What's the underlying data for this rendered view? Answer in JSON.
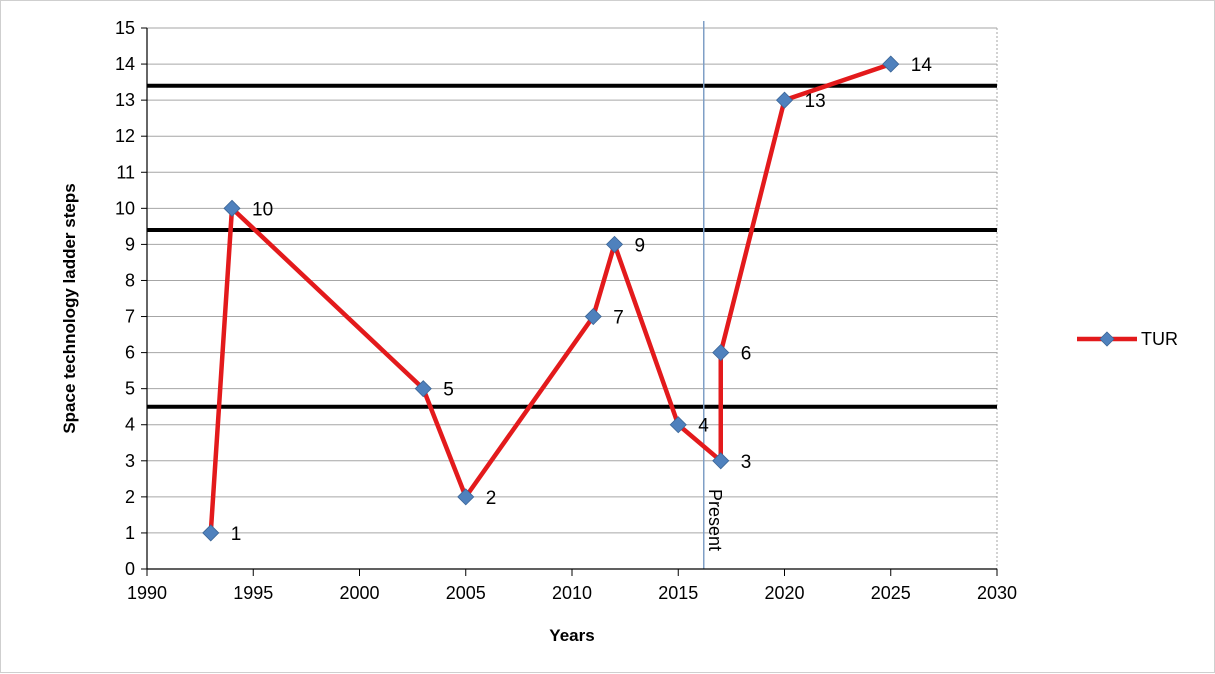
{
  "chart_data": {
    "type": "line",
    "title": "",
    "xlabel": "Years",
    "ylabel": "Space technology  ladder steps",
    "xlim": [
      1990,
      2030
    ],
    "ylim": [
      0,
      15
    ],
    "x_ticks": [
      1990,
      1995,
      2000,
      2005,
      2010,
      2015,
      2020,
      2025,
      2030
    ],
    "y_ticks": [
      0,
      1,
      2,
      3,
      4,
      5,
      6,
      7,
      8,
      9,
      10,
      11,
      12,
      13,
      14,
      15
    ],
    "grid": true,
    "legend_position": "right",
    "series": [
      {
        "name": "TUR",
        "color": "#e31a1c",
        "marker_color": "#4f81bd",
        "x": [
          1993,
          1994,
          2003,
          2005,
          2011,
          2012,
          2015,
          2017,
          2017,
          2020,
          2025
        ],
        "y": [
          1,
          10,
          5,
          2,
          7,
          9,
          4,
          3,
          6,
          13,
          14
        ],
        "labels": [
          "1",
          "10",
          "5",
          "2",
          "7",
          "9",
          "4",
          "3",
          "6",
          "13",
          "14"
        ]
      }
    ],
    "threshold_lines": [
      4.5,
      9.4,
      13.4
    ],
    "annotations": [
      {
        "text": "Present",
        "x": 2016.2
      }
    ]
  }
}
